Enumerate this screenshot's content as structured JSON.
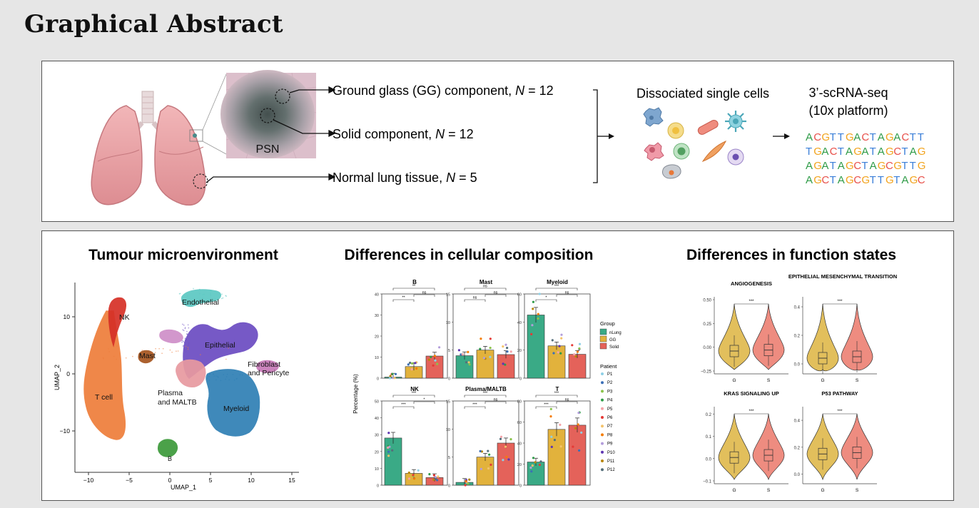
{
  "page": {
    "title": "Graphical Abstract"
  },
  "workflow": {
    "psn_label": "PSN",
    "samples": [
      {
        "label": "Ground glass (GG) component, ",
        "n": "N",
        "count": " = 12"
      },
      {
        "label": "Solid component, ",
        "n": "N",
        "count": " = 12"
      },
      {
        "label": "Normal lung tissue, ",
        "n": "N",
        "count": " = 5"
      }
    ],
    "dissociation_label": "Dissociated single cells",
    "seq_title_line1": "3’-scRNA-seq",
    "seq_title_line2": "(10x platform)",
    "sequences": [
      "ACGTTGACTAGACTT",
      "TGACTAGATAGCTAG",
      "AGATAGCTAGCGTTG",
      "AGCTAGCGTTGTAGC"
    ],
    "base_colors": {
      "A": "#2e9b47",
      "C": "#e8504a",
      "G": "#f2a31c",
      "T": "#3b7fd8"
    }
  },
  "umap": {
    "title": "Tumour microenvironment",
    "xlabel": "UMAP_1",
    "ylabel": "UMAP_2",
    "xticks": [
      "−10",
      "−5",
      "0",
      "5",
      "10",
      "15"
    ],
    "yticks": [
      "10",
      "0",
      "−10"
    ],
    "clusters": [
      {
        "label": "NK",
        "color": "#d63027"
      },
      {
        "label": "T cell",
        "color": "#ee7d3a"
      },
      {
        "label": "Mast",
        "color": "#a6541e"
      },
      {
        "label": "Endothelial",
        "color": "#5cc8c3"
      },
      {
        "label": "Epithelial",
        "color": "#6b4cc2"
      },
      {
        "label": "Fibroblast",
        "color": "#c77ab8"
      },
      {
        "label": "and Pericyte",
        "color": "#c77ab8"
      },
      {
        "label": "Plasma",
        "color": "#e89aa0"
      },
      {
        "label": "and MALTB",
        "color": "#e89aa0"
      },
      {
        "label": "Myeloid",
        "color": "#2f7fb5"
      },
      {
        "label": "B",
        "color": "#3c9a3a"
      }
    ],
    "cluster_colors": {
      "NK": "#d63027",
      "T": "#ee7d3a",
      "Mast": "#a6541e",
      "Endo": "#5cc8c3",
      "Epi": "#6b4cc2",
      "Fib": "#c77ab8",
      "Plasma": "#e89aa0",
      "Myeloid": "#2f7fb5",
      "B": "#3c9a3a",
      "Pink": "#cf8fc8"
    }
  },
  "composition": {
    "title": "Differences in cellular composition",
    "ylabel": "Percentage (%)",
    "group_legend_title": "Group",
    "groups": [
      {
        "label": "nLung",
        "color": "#3aaa86"
      },
      {
        "label": "GG",
        "color": "#e2b23c"
      },
      {
        "label": "Solid",
        "color": "#e4625a"
      }
    ],
    "patient_legend_title": "Patient",
    "patients": [
      {
        "label": "P1",
        "color": "#8fd0e6"
      },
      {
        "label": "P2",
        "color": "#3b6fb6"
      },
      {
        "label": "P3",
        "color": "#8bc34a"
      },
      {
        "label": "P4",
        "color": "#2e9b47"
      },
      {
        "label": "P5",
        "color": "#f4a3a8"
      },
      {
        "label": "P6",
        "color": "#e53935"
      },
      {
        "label": "P7",
        "color": "#f4c36b"
      },
      {
        "label": "P8",
        "color": "#f57c00"
      },
      {
        "label": "P9",
        "color": "#b39ddb"
      },
      {
        "label": "P10",
        "color": "#5e35b1"
      },
      {
        "label": "P11",
        "color": "#b8860b"
      },
      {
        "label": "P12",
        "color": "#546e7a"
      }
    ]
  },
  "chart_data": [
    {
      "type": "bar",
      "title": "B",
      "categories": [
        "nLung",
        "GG",
        "Solid"
      ],
      "values": [
        0.5,
        5.5,
        10.5
      ],
      "ylim": [
        0,
        40
      ],
      "yticks": [
        "0",
        "10",
        "20",
        "30",
        "40"
      ],
      "significance": [
        "**",
        "**",
        "ns"
      ]
    },
    {
      "type": "bar",
      "title": "Mast",
      "categories": [
        "nLung",
        "GG",
        "Solid"
      ],
      "values": [
        4,
        5,
        4.2
      ],
      "ylim": [
        0,
        15
      ],
      "yticks": [
        "0",
        "5",
        "10",
        "15"
      ],
      "significance": [
        "ns",
        "ns",
        "ns"
      ]
    },
    {
      "type": "bar",
      "title": "Myeloid",
      "categories": [
        "nLung",
        "GG",
        "Solid"
      ],
      "values": [
        45,
        23,
        17
      ],
      "ylim": [
        0,
        60
      ],
      "yticks": [
        "0",
        "20",
        "40",
        "60"
      ],
      "significance": [
        "***",
        "*",
        "ns"
      ]
    },
    {
      "type": "bar",
      "title": "NK",
      "categories": [
        "nLung",
        "GG",
        "Solid"
      ],
      "values": [
        28,
        7,
        4.5
      ],
      "ylim": [
        0,
        50
      ],
      "yticks": [
        "0",
        "10",
        "20",
        "30",
        "40",
        "50"
      ],
      "significance": [
        "***",
        "***",
        "*"
      ]
    },
    {
      "type": "bar",
      "title": "Plasma/MALTB",
      "categories": [
        "nLung",
        "GG",
        "Solid"
      ],
      "values": [
        0.5,
        5,
        7.5
      ],
      "ylim": [
        0,
        15
      ],
      "yticks": [
        "0",
        "5",
        "10",
        "15"
      ],
      "significance": [
        "***",
        "***",
        "ns"
      ]
    },
    {
      "type": "bar",
      "title": "T",
      "categories": [
        "nLung",
        "GG",
        "Solid"
      ],
      "values": [
        22,
        53,
        57
      ],
      "ylim": [
        0,
        80
      ],
      "yticks": [
        "0",
        "20",
        "40",
        "60",
        "80"
      ],
      "significance": [
        "***",
        "***",
        "ns"
      ]
    },
    {
      "type": "violin",
      "title": "ANGIOGENESIS",
      "categories": [
        "G",
        "S"
      ],
      "medians": [
        -0.04,
        -0.03
      ],
      "ylim": [
        -0.25,
        0.5
      ],
      "yticks": [
        "0.50",
        "0.25",
        "0.00",
        "−0.25"
      ],
      "significance": "***"
    },
    {
      "type": "violin",
      "title": "EPITHELIAL MESENCHYMAL TRANSITION",
      "categories": [
        "G",
        "S"
      ],
      "medians": [
        0.04,
        0.05
      ],
      "ylim": [
        -0.05,
        0.45
      ],
      "yticks": [
        "0.4",
        "0.2",
        "0.0"
      ],
      "significance": "***"
    },
    {
      "type": "violin",
      "title": "KRAS SIGNALING UP",
      "categories": [
        "G",
        "S"
      ],
      "medians": [
        0.005,
        0.015
      ],
      "ylim": [
        -0.1,
        0.22
      ],
      "yticks": [
        "0.2",
        "0.1",
        "0.0",
        "−0.1"
      ],
      "significance": "***"
    },
    {
      "type": "violin",
      "title": "P53 PATHWAY",
      "categories": [
        "G",
        "S"
      ],
      "medians": [
        0.15,
        0.16
      ],
      "ylim": [
        -0.05,
        0.48
      ],
      "yticks": [
        "0.4",
        "0.2",
        "0.0"
      ],
      "significance": "***"
    }
  ],
  "function": {
    "title": "Differences in function states"
  }
}
